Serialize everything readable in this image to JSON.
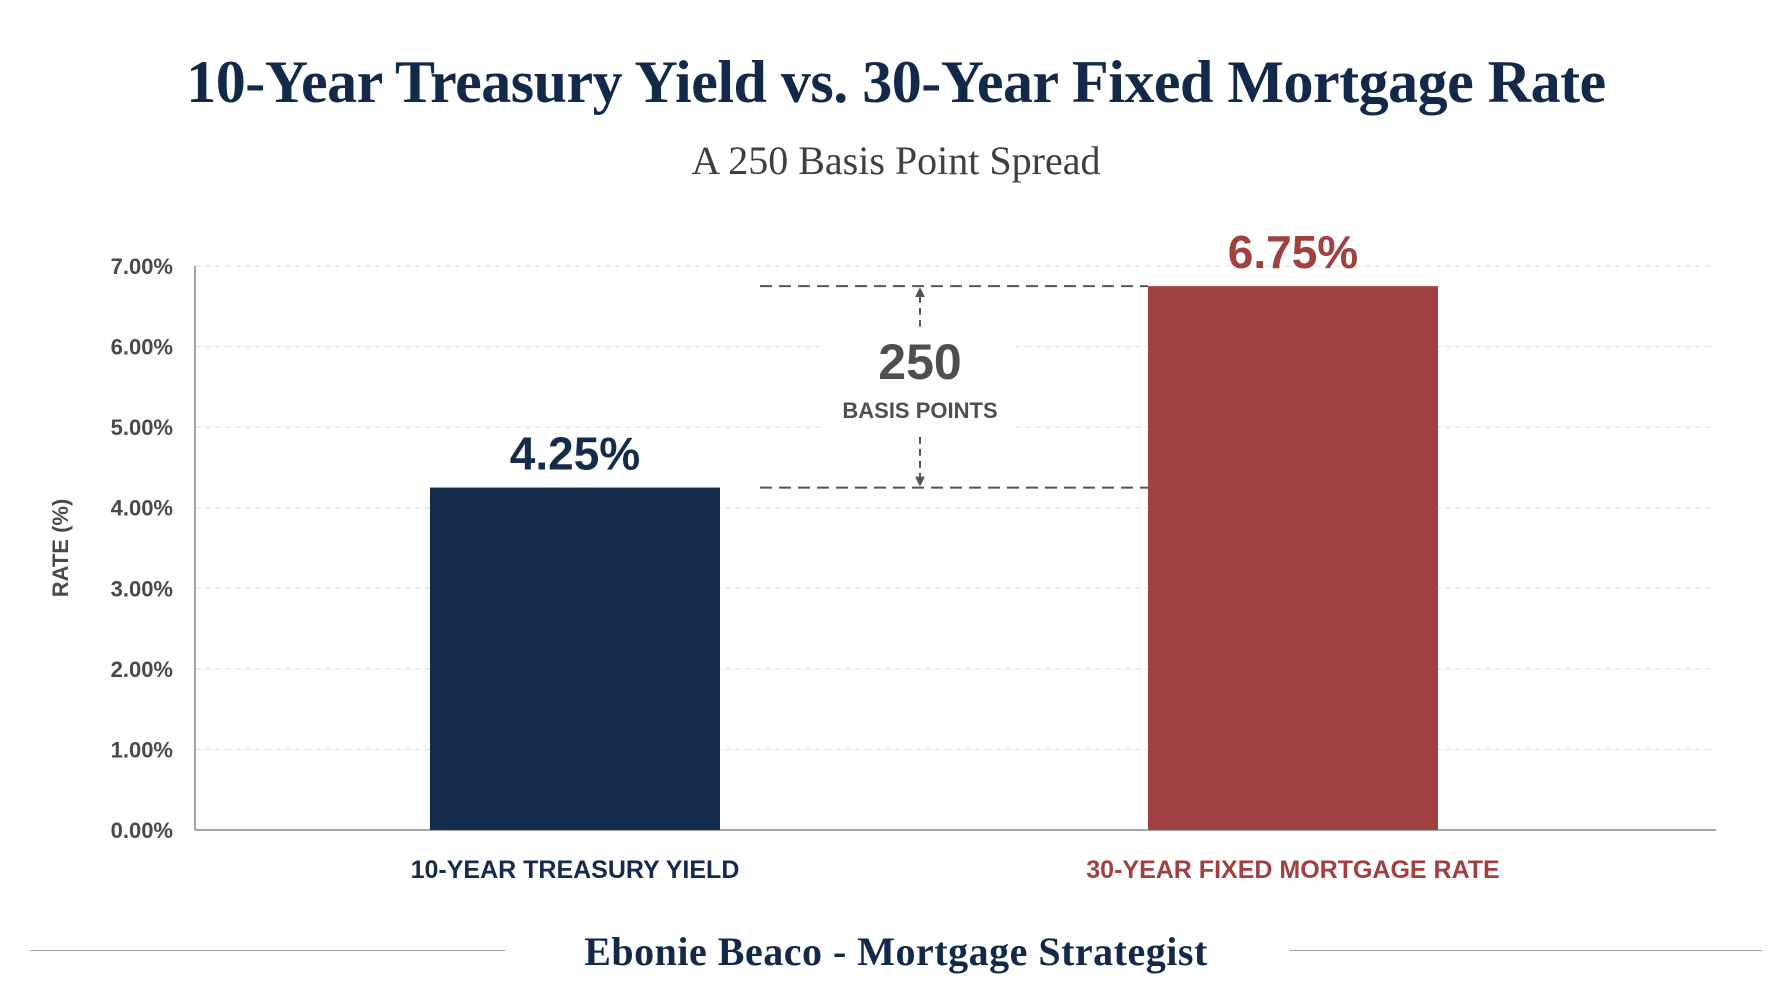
{
  "colors": {
    "treasury": "#142b4c",
    "mortgage": "#a04041",
    "axis_text": "#4a4a4a",
    "grid": "#e3e3e3",
    "spread": "#555555"
  },
  "chart_data": {
    "type": "bar",
    "title": "10-Year Treasury Yield vs. 30-Year Fixed Mortgage Rate",
    "subtitle": "A 250 Basis Point Spread",
    "ylabel": "RATE (%)",
    "xlabel": "",
    "ylim": [
      0,
      7
    ],
    "yticks": [
      "0.00%",
      "1.00%",
      "2.00%",
      "3.00%",
      "4.00%",
      "5.00%",
      "6.00%",
      "7.00%"
    ],
    "grid": true,
    "categories": [
      "10-YEAR TREASURY YIELD",
      "30-YEAR FIXED MORTGAGE RATE"
    ],
    "values": [
      4.25,
      6.75
    ],
    "data_labels": [
      "4.25%",
      "6.75%"
    ],
    "annotation": {
      "value": "250",
      "unit": "BASIS POINTS"
    }
  },
  "footer": {
    "text": "Ebonie Beaco - Mortgage Strategist"
  }
}
